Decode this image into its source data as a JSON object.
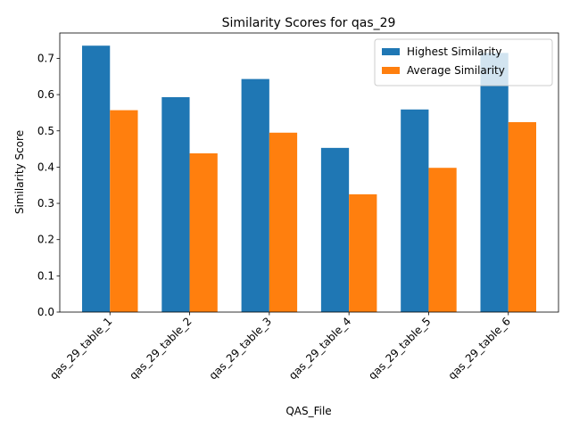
{
  "chart_data": {
    "type": "bar",
    "title": "Similarity Scores for qas_29",
    "xlabel": "QAS_File",
    "ylabel": "Similarity Score",
    "categories": [
      "qas_29_table_1",
      "qas_29_table_2",
      "qas_29_table_3",
      "qas_29_table_4",
      "qas_29_table_5",
      "qas_29_table_6"
    ],
    "series": [
      {
        "name": "Highest Similarity",
        "color": "#1f77b4",
        "values": [
          0.735,
          0.593,
          0.643,
          0.453,
          0.559,
          0.715
        ]
      },
      {
        "name": "Average Similarity",
        "color": "#ff7f0e",
        "values": [
          0.557,
          0.438,
          0.495,
          0.325,
          0.398,
          0.524
        ]
      }
    ],
    "ylim": [
      0,
      0.77
    ],
    "yticks": [
      "0.0",
      "0.1",
      "0.2",
      "0.3",
      "0.4",
      "0.5",
      "0.6",
      "0.7"
    ],
    "grid": false,
    "legend_position": "top-right"
  }
}
